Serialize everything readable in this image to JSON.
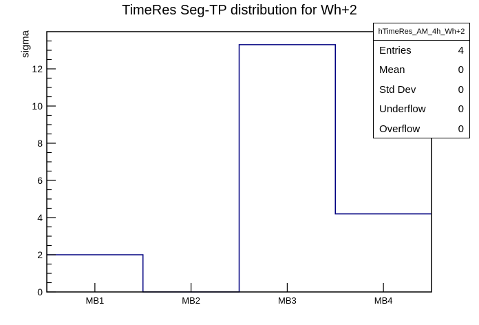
{
  "chart_data": {
    "type": "bar",
    "subtype": "step-histogram-outline",
    "title": "TimeRes Seg-TP distribution for Wh+2",
    "xlabel": "",
    "ylabel": "sigma",
    "categories": [
      "MB1",
      "MB2",
      "MB3",
      "MB4"
    ],
    "values": [
      2,
      0,
      13.3,
      4.2
    ],
    "ylim": [
      0,
      14
    ],
    "y_major_ticks": [
      0,
      2,
      4,
      6,
      8,
      10,
      12
    ],
    "y_minor_step": 0.5,
    "grid": false,
    "legend_position": "none",
    "line_color": "#000080",
    "frame_color": "#000000"
  },
  "stats_box": {
    "header": "hTimeRes_AM_4h_Wh+2",
    "rows": [
      {
        "label": "Entries",
        "value": "4"
      },
      {
        "label": "Mean",
        "value": "0"
      },
      {
        "label": "Std Dev",
        "value": "0"
      },
      {
        "label": "Underflow",
        "value": "0"
      },
      {
        "label": "Overflow",
        "value": "0"
      }
    ]
  }
}
